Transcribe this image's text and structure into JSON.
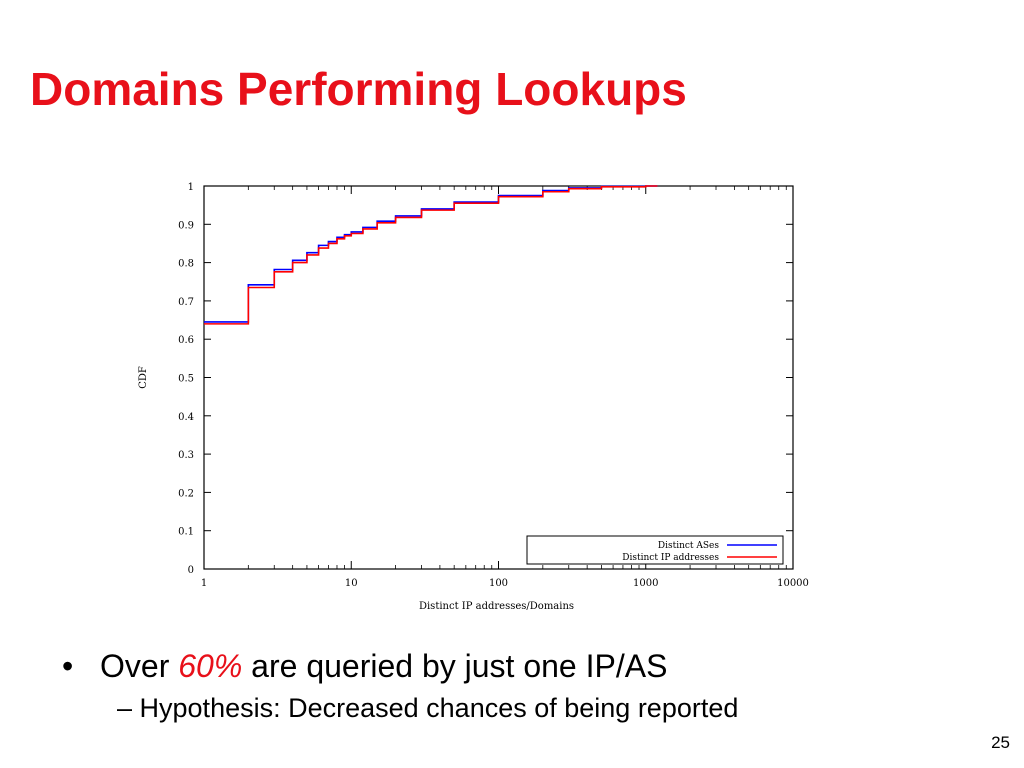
{
  "slide": {
    "title": "Domains Performing Lookups",
    "page_number": "25"
  },
  "bullets": [
    {
      "prefix": "Over ",
      "highlight": "60%",
      "suffix": " are queried by just one IP/AS"
    },
    {
      "text": "Hypothesis: Decreased chances of being reported"
    }
  ],
  "chart_data": {
    "type": "line",
    "xlabel": "Distinct IP addresses/Domains",
    "ylabel": "CDF",
    "xscale": "log",
    "xlim": [
      1,
      10000
    ],
    "ylim": [
      0,
      1
    ],
    "xticks": [
      1,
      10,
      100,
      1000,
      10000
    ],
    "xtick_labels": [
      "1",
      "10",
      "100",
      "1000",
      "10000"
    ],
    "yticks": [
      0,
      0.1,
      0.2,
      0.3,
      0.4,
      0.5,
      0.6,
      0.7,
      0.8,
      0.9,
      1
    ],
    "ytick_labels": [
      "0",
      "0.1",
      "0.2",
      "0.3",
      "0.4",
      "0.5",
      "0.6",
      "0.7",
      "0.8",
      "0.9",
      "1"
    ],
    "grid": false,
    "legend_position": "bottom-right",
    "series": [
      {
        "name": "Distinct ASes",
        "color": "#0000ff",
        "step": true,
        "x": [
          1,
          2,
          3,
          4,
          5,
          6,
          7,
          8,
          9,
          10,
          12,
          15,
          20,
          30,
          50,
          100,
          200,
          300,
          500,
          1000,
          1200
        ],
        "y": [
          0.645,
          0.742,
          0.782,
          0.806,
          0.826,
          0.845,
          0.855,
          0.866,
          0.873,
          0.88,
          0.892,
          0.908,
          0.922,
          0.94,
          0.958,
          0.975,
          0.988,
          0.995,
          0.999,
          1.0,
          1.0
        ]
      },
      {
        "name": "Distinct IP addresses",
        "color": "#ff0000",
        "step": true,
        "x": [
          1,
          2,
          3,
          4,
          5,
          6,
          7,
          8,
          9,
          10,
          12,
          15,
          20,
          30,
          50,
          100,
          200,
          300,
          500,
          1000,
          1200
        ],
        "y": [
          0.64,
          0.735,
          0.776,
          0.8,
          0.82,
          0.838,
          0.85,
          0.862,
          0.87,
          0.876,
          0.888,
          0.904,
          0.918,
          0.937,
          0.955,
          0.972,
          0.985,
          0.993,
          0.998,
          1.0,
          1.0
        ]
      }
    ]
  }
}
